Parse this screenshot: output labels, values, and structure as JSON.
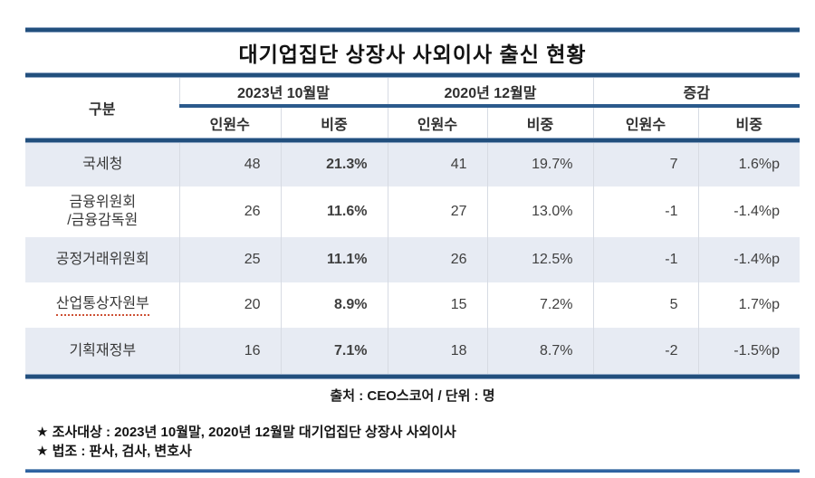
{
  "title": "대기업집단 상장사 사외이사 출신 현황",
  "table": {
    "corner_header": "구분",
    "group_headers": [
      "2023년 10월말",
      "2020년 12월말",
      "증감"
    ],
    "sub_headers": [
      "인원수",
      "비중",
      "인원수",
      "비중",
      "인원수",
      "비중"
    ],
    "rows": [
      {
        "label": "국세청",
        "values": [
          "48",
          "21.3%",
          "41",
          "19.7%",
          "7",
          "1.6%p"
        ]
      },
      {
        "label": "금융위원회\n/금융감독원",
        "values": [
          "26",
          "11.6%",
          "27",
          "13.0%",
          "-1",
          "-1.4%p"
        ]
      },
      {
        "label": "공정거래위원회",
        "values": [
          "25",
          "11.1%",
          "26",
          "12.5%",
          "-1",
          "-1.4%p"
        ]
      },
      {
        "label": "산업통상자원부",
        "values": [
          "20",
          "8.9%",
          "15",
          "7.2%",
          "5",
          "1.7%p"
        ]
      },
      {
        "label": "기획재정부",
        "values": [
          "16",
          "7.1%",
          "18",
          "8.7%",
          "-2",
          "-1.5%p"
        ]
      }
    ]
  },
  "source_note": "출처 : CEO스코어 / 단위 : 명",
  "footnotes": [
    "★ 조사대상 : 2023년 10월말, 2020년 12월말 대기업집단 상장사 사외이사",
    "★ 법조 : 판사, 검사, 변호사"
  ],
  "colors": {
    "rule_blue": "#224f7d",
    "bottom_rule_blue": "#2d62a0",
    "row_shade": "#e7ebf3",
    "misspell_underline": "#cd5135"
  }
}
